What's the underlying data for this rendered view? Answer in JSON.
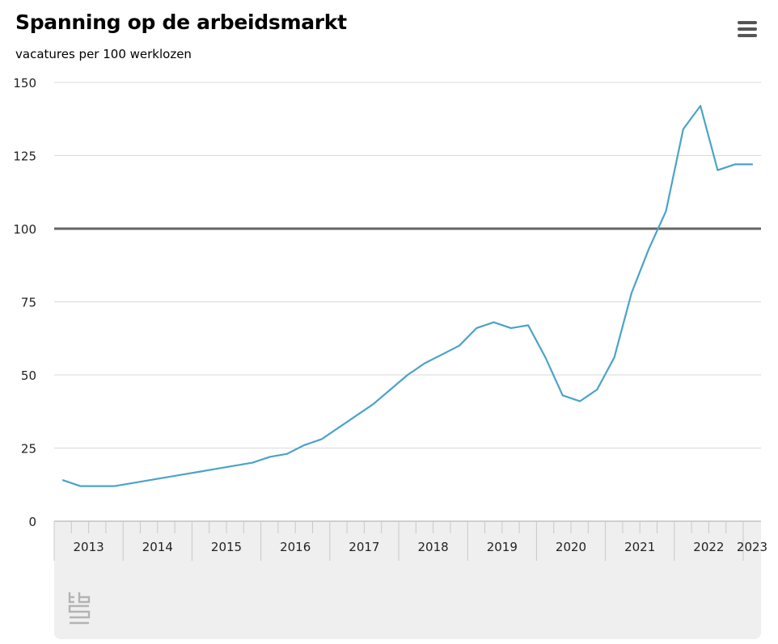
{
  "header": {
    "title": "Spanning op de arbeidsmarkt",
    "subtitle": "vacatures per 100 werklozen"
  },
  "menu": {
    "icon": "hamburger-menu-icon"
  },
  "logo": {
    "icon": "cbs-logo-icon"
  },
  "colors": {
    "line": "#4ba3c7",
    "reference_line": "#666666",
    "grid": "#d9d9d9",
    "axis_panel": "#efefef"
  },
  "chart_data": {
    "type": "line",
    "title": "Spanning op de arbeidsmarkt",
    "subtitle": "vacatures per 100 werklozen",
    "xlabel": "",
    "ylabel": "",
    "ylim": [
      0,
      150
    ],
    "yticks": [
      0,
      25,
      50,
      75,
      100,
      125,
      150
    ],
    "grid": true,
    "legend": "none",
    "reference_line": 100,
    "categories": [
      "2013",
      "2014",
      "2015",
      "2016",
      "2017",
      "2018",
      "2019",
      "2020",
      "2021",
      "2022",
      "2023"
    ],
    "x": [
      "2013 Q1",
      "2013 Q2",
      "2013 Q3",
      "2013 Q4",
      "2014 Q1",
      "2014 Q2",
      "2014 Q3",
      "2014 Q4",
      "2015 Q1",
      "2015 Q2",
      "2015 Q3",
      "2015 Q4",
      "2016 Q1",
      "2016 Q2",
      "2016 Q3",
      "2016 Q4",
      "2017 Q1",
      "2017 Q2",
      "2017 Q3",
      "2017 Q4",
      "2018 Q1",
      "2018 Q2",
      "2018 Q3",
      "2018 Q4",
      "2019 Q1",
      "2019 Q2",
      "2019 Q3",
      "2019 Q4",
      "2020 Q1",
      "2020 Q2",
      "2020 Q3",
      "2020 Q4",
      "2021 Q1",
      "2021 Q2",
      "2021 Q3",
      "2021 Q4",
      "2022 Q1",
      "2022 Q2",
      "2022 Q3",
      "2022 Q4",
      "2023 Q1"
    ],
    "series": [
      {
        "values": [
          14,
          12,
          12,
          12,
          13,
          14,
          15,
          16,
          17,
          18,
          19,
          20,
          22,
          23,
          26,
          28,
          32,
          36,
          40,
          45,
          50,
          54,
          57,
          60,
          66,
          68,
          66,
          67,
          56,
          43,
          41,
          45,
          56,
          78,
          93,
          106,
          134,
          142,
          120,
          122,
          122
        ]
      }
    ]
  }
}
